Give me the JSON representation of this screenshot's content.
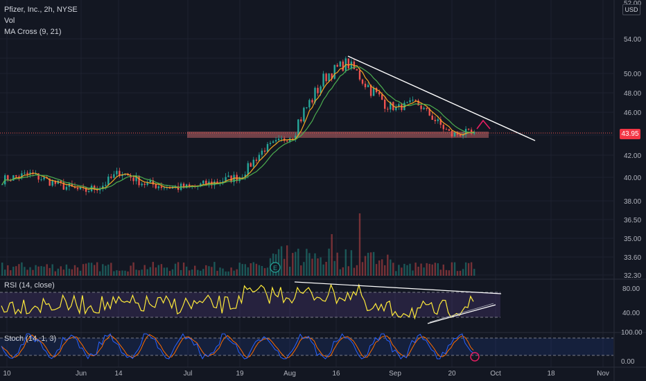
{
  "header": {
    "symbol_line": "Pfizer, Inc., 2h, NYSE",
    "vol_label": "Vol",
    "ma_label": "MA Cross (9, 21)",
    "currency": "USD"
  },
  "panes": {
    "rsi_label": "RSI (14, close)",
    "stoch_label": "Stoch (14, 1, 3)",
    "earnings_marker": "E"
  },
  "last_price": "43.95",
  "colors": {
    "background": "#131722",
    "up": "#26a69a",
    "down": "#ef5350",
    "ma_fast": "#f5a623",
    "ma_slow": "#4caf50",
    "rsi": "#ffeb3b",
    "stoch_k": "#2962ff",
    "stoch_d": "#ff6d00",
    "support_zone": "#e57373",
    "trendline": "#ffffff"
  },
  "chart_data": {
    "type": "candlestick",
    "price_axis_ticks": [
      "52.00",
      "54.00",
      "50.00",
      "48.00",
      "46.00",
      "44.00",
      "42.00",
      "40.00",
      "38.00",
      "36.50",
      "35.00",
      "33.60",
      "32.30"
    ],
    "rsi_axis_ticks": [
      "80.00",
      "40.00"
    ],
    "stoch_axis_ticks": [
      "100.00",
      "0.00"
    ],
    "x_axis_ticks": [
      "10",
      "Jun",
      "14",
      "Jul",
      "19",
      "Aug",
      "16",
      "Sep",
      "20",
      "Oct",
      "18",
      "Nov"
    ],
    "price_path": [
      [
        "10",
        39.8
      ],
      [
        "17 May",
        40.3
      ],
      [
        "24 May",
        39.4
      ],
      [
        "Jun",
        38.8
      ],
      [
        "7 Jun",
        39.3
      ],
      [
        "14",
        40.5
      ],
      [
        "21 Jun",
        39.5
      ],
      [
        "28 Jun",
        39.2
      ],
      [
        "Jul",
        39.1
      ],
      [
        "12 Jul",
        39.6
      ],
      [
        "19",
        40.1
      ],
      [
        "26 Jul",
        42.6
      ],
      [
        "Aug",
        43.9
      ],
      [
        "9 Aug",
        47.2
      ],
      [
        "13 Aug",
        49.8
      ],
      [
        "16",
        51.4
      ],
      [
        "20 Aug",
        49.2
      ],
      [
        "25 Aug",
        47.6
      ],
      [
        "Sep",
        46.4
      ],
      [
        "8 Sep",
        47.0
      ],
      [
        "13 Sep",
        45.2
      ],
      [
        "20",
        44.0
      ],
      [
        "23 Sep",
        44.2
      ],
      [
        "24 Sep",
        43.95
      ]
    ],
    "support_zone": [
      43.6,
      44.0
    ],
    "rsi_bands": [
      70,
      30
    ],
    "stoch_bands": [
      80,
      20
    ],
    "ylim": [
      32.3,
      55
    ]
  }
}
